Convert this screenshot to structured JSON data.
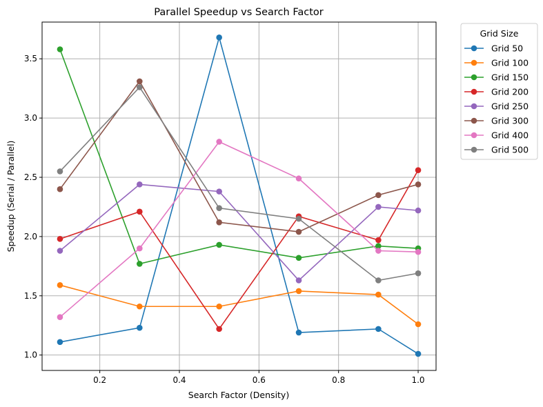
{
  "chart_data": {
    "type": "line",
    "title": "Parallel Speedup vs Search Factor",
    "xlabel": "Search Factor (Density)",
    "ylabel": "Speedup (Serial / Parallel)",
    "x": [
      0.1,
      0.3,
      0.5,
      0.7,
      0.9,
      1.0
    ],
    "xlim": [
      0.055,
      1.045
    ],
    "ylim": [
      0.87,
      3.81
    ],
    "xticks": [
      "0.2",
      "0.4",
      "0.6",
      "0.8",
      "1.0"
    ],
    "xtick_values": [
      0.2,
      0.4,
      0.6,
      0.8,
      1.0
    ],
    "yticks": [
      "1.0",
      "1.5",
      "2.0",
      "2.5",
      "3.0",
      "3.5"
    ],
    "ytick_values": [
      1.0,
      1.5,
      2.0,
      2.5,
      3.0,
      3.5
    ],
    "grid": true,
    "legend_title": "Grid Size",
    "legend_placement": "outside-right-top",
    "series": [
      {
        "name": "Grid 50",
        "color": "#1f77b4",
        "values": [
          1.11,
          1.23,
          3.68,
          1.19,
          1.22,
          1.01
        ]
      },
      {
        "name": "Grid 100",
        "color": "#ff7f0e",
        "values": [
          1.59,
          1.41,
          1.41,
          1.54,
          1.51,
          1.26
        ]
      },
      {
        "name": "Grid 150",
        "color": "#2ca02c",
        "values": [
          3.58,
          1.77,
          1.93,
          1.82,
          1.92,
          1.9
        ]
      },
      {
        "name": "Grid 200",
        "color": "#d62728",
        "values": [
          1.98,
          2.21,
          1.22,
          2.17,
          1.97,
          2.56
        ]
      },
      {
        "name": "Grid 250",
        "color": "#9467bd",
        "values": [
          1.88,
          2.44,
          2.38,
          1.63,
          2.25,
          2.22
        ]
      },
      {
        "name": "Grid 300",
        "color": "#8c564b",
        "values": [
          2.4,
          3.31,
          2.12,
          2.04,
          2.35,
          2.44
        ]
      },
      {
        "name": "Grid 400",
        "color": "#e377c2",
        "values": [
          1.32,
          1.9,
          2.8,
          2.49,
          1.88,
          1.87
        ]
      },
      {
        "name": "Grid 500",
        "color": "#7f7f7f",
        "values": [
          2.55,
          3.26,
          2.24,
          2.15,
          1.63,
          1.69
        ]
      }
    ]
  }
}
